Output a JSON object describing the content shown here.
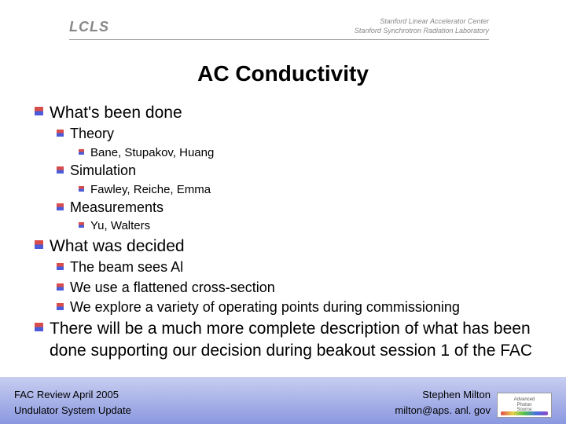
{
  "header": {
    "logo_text": "LCLS",
    "org_line1": "Stanford Linear Accelerator Center",
    "org_line2": "Stanford Synchrotron Radiation Laboratory"
  },
  "title": "AC Conductivity",
  "bullets": {
    "b1": "What's been done",
    "b1_1": "Theory",
    "b1_1_1": "Bane, Stupakov, Huang",
    "b1_2": "Simulation",
    "b1_2_1": "Fawley, Reiche, Emma",
    "b1_3": "Measurements",
    "b1_3_1": "Yu, Walters",
    "b2": "What was decided",
    "b2_1": "The beam sees Al",
    "b2_2": "We use a flattened cross-section",
    "b2_3": "We explore a variety of operating points during commissioning",
    "b3": "There will be a much more complete description of what has been done supporting our decision during beakout session 1 of the FAC"
  },
  "footer": {
    "left_line1": "FAC Review April 2005",
    "left_line2": "Undulator System Update",
    "right_line1": "Stephen Milton",
    "right_line2": "milton@aps. anl. gov",
    "aps_line1": "Advanced",
    "aps_line2": "Photon",
    "aps_line3": "Source"
  },
  "colors": {
    "bullet_top": "#d84c4c",
    "bullet_bottom": "#4c5cd8",
    "footer_grad_top": "#c8cef0",
    "footer_grad_bottom": "#8a98e0",
    "title_color": "#000000",
    "text_color": "#000000"
  },
  "fonts": {
    "title_size_pt": 21,
    "lvl1_size_pt": 16,
    "lvl2_size_pt": 13.5,
    "lvl3_size_pt": 11,
    "footer_size_pt": 10
  }
}
